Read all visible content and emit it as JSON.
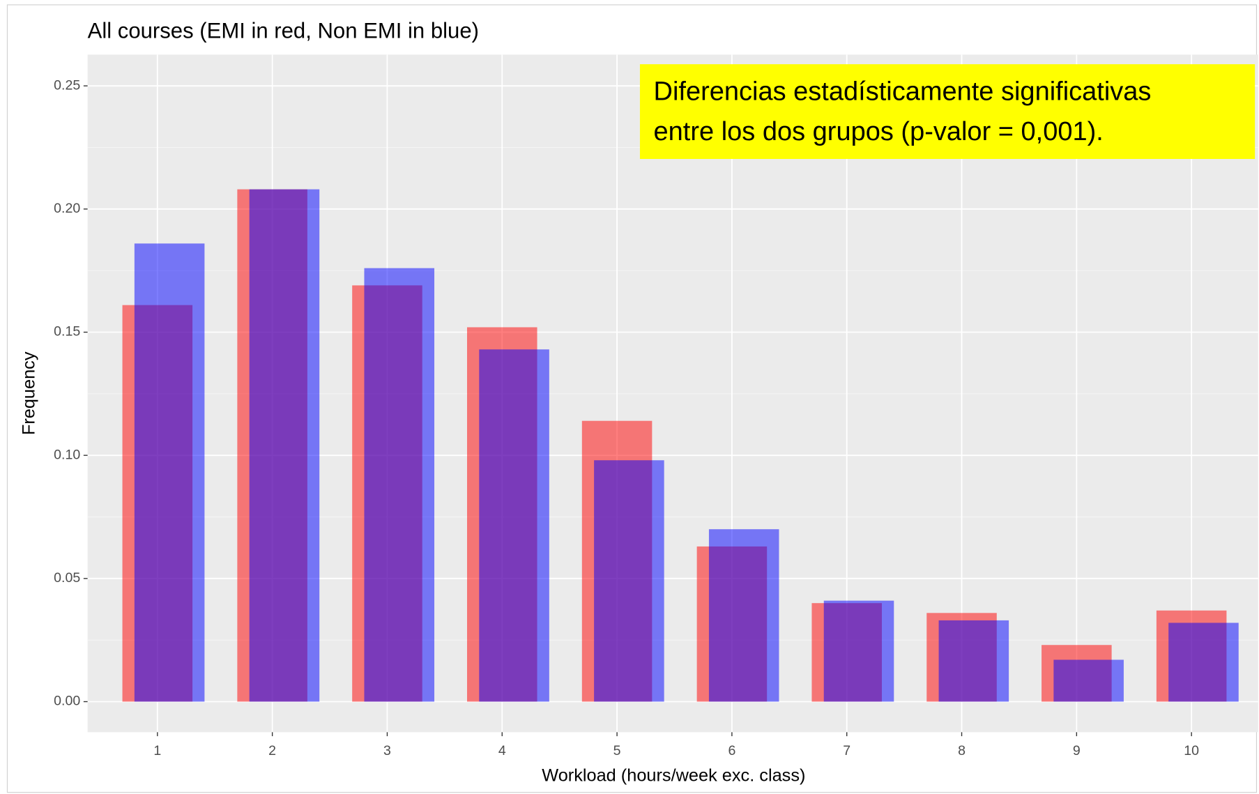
{
  "chart_data": {
    "type": "bar",
    "title": "All courses (EMI in red, Non EMI in blue)",
    "x_label": "Workload (hours/week exc. class)",
    "y_label": "Frequency",
    "annotation": [
      "Diferencias estadísticamente significativas",
      "entre los dos grupos (p-valor = 0,001)."
    ],
    "categories": [
      "1",
      "2",
      "3",
      "4",
      "5",
      "6",
      "7",
      "8",
      "9",
      "10"
    ],
    "series": [
      {
        "name": "EMI",
        "color": "#ff0000",
        "values": [
          0.161,
          0.208,
          0.169,
          0.152,
          0.114,
          0.063,
          0.04,
          0.036,
          0.023,
          0.037
        ]
      },
      {
        "name": "Non EMI",
        "color": "#0000ff",
        "values": [
          0.186,
          0.208,
          0.176,
          0.143,
          0.098,
          0.07,
          0.041,
          0.033,
          0.017,
          0.032
        ]
      }
    ],
    "ylim": [
      -0.0124,
      0.2627
    ],
    "yticks": [
      {
        "value": 0,
        "label": "0.00"
      },
      {
        "value": 0.05,
        "label": "0.05"
      },
      {
        "value": 0.1,
        "label": "0.10"
      },
      {
        "value": 0.15,
        "label": "0.15"
      },
      {
        "value": 0.2,
        "label": "0.20"
      },
      {
        "value": 0.25,
        "label": "0.25"
      }
    ],
    "grid": true
  }
}
